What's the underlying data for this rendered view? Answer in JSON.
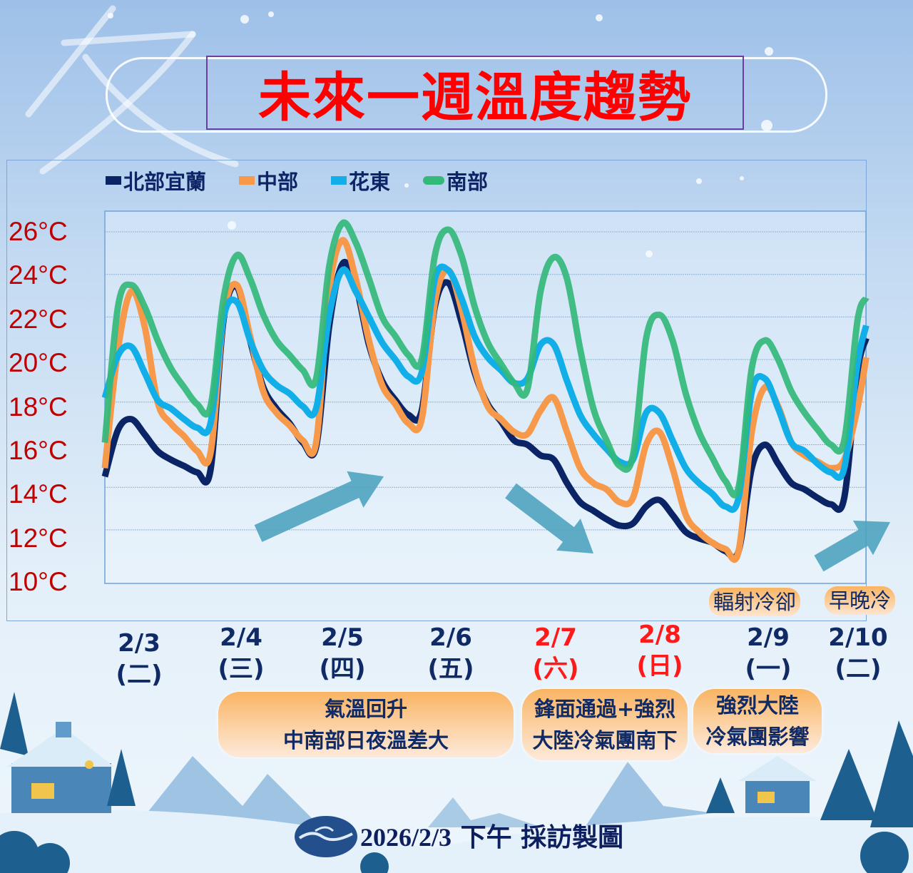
{
  "title": "未來一週溫度趨勢",
  "footer": {
    "date": "2026/2/3",
    "text": "下午 採訪製圖"
  },
  "colors": {
    "north": "#0b2466",
    "central": "#f7994a",
    "east": "#12aee8",
    "south": "#33b97a",
    "arrow": "#4fa3bf",
    "weekend": "#ff1a1a"
  },
  "dates": [
    {
      "date": "2/3",
      "weekday": "(二)",
      "weekend": false
    },
    {
      "date": "2/4",
      "weekday": "(三)",
      "weekend": false
    },
    {
      "date": "2/5",
      "weekday": "(四)",
      "weekend": false
    },
    {
      "date": "2/6",
      "weekday": "(五)",
      "weekend": false
    },
    {
      "date": "2/7",
      "weekday": "(六)",
      "weekend": true
    },
    {
      "date": "2/8",
      "weekday": "(日)",
      "weekend": true
    },
    {
      "date": "2/9",
      "weekday": "(一)",
      "weekend": false
    },
    {
      "date": "2/10",
      "weekday": "(二)",
      "weekend": false
    }
  ],
  "annotations": {
    "warming": [
      "氣溫回升",
      "中南部日夜溫差大"
    ],
    "front": [
      "鋒面通過+強烈",
      "大陸冷氣團南下"
    ],
    "cold_air": [
      "強烈大陸",
      "冷氣團影響"
    ],
    "radiative": "輻射冷卻",
    "morning_night": "早晚冷"
  },
  "chart_data": {
    "type": "line",
    "title": "未來一週溫度趨勢",
    "xlabel": "",
    "ylabel": "",
    "y_unit": "°C",
    "ylim": [
      10,
      26
    ],
    "yticks": [
      "26°C",
      "24°C",
      "22°C",
      "20°C",
      "18°C",
      "16°C",
      "14°C",
      "12°C",
      "10°C"
    ],
    "ytick_values": [
      26,
      24,
      22,
      20,
      18,
      16,
      14,
      12,
      10
    ],
    "grid": true,
    "legend": "top-left",
    "trend_arrows": [
      "up",
      "down",
      "up"
    ],
    "x": [
      "2/3 08:00",
      "2/3 11:00",
      "2/3 14:00",
      "2/3 17:00",
      "2/3 20:00",
      "2/3 23:00",
      "2/4 02:00",
      "2/4 05:00",
      "2/4 08:00",
      "2/4 11:00",
      "2/4 14:00",
      "2/4 17:00",
      "2/4 20:00",
      "2/4 23:00",
      "2/5 02:00",
      "2/5 05:00",
      "2/5 08:00",
      "2/5 11:00",
      "2/5 14:00",
      "2/5 17:00",
      "2/5 20:00",
      "2/5 23:00",
      "2/6 02:00",
      "2/6 05:00",
      "2/6 08:00",
      "2/6 11:00",
      "2/6 14:00",
      "2/6 17:00",
      "2/6 20:00",
      "2/6 23:00",
      "2/7 02:00",
      "2/7 05:00",
      "2/7 08:00",
      "2/7 11:00",
      "2/7 14:00",
      "2/7 17:00",
      "2/7 20:00",
      "2/7 23:00",
      "2/8 02:00",
      "2/8 05:00",
      "2/8 08:00",
      "2/8 11:00",
      "2/8 14:00",
      "2/8 17:00",
      "2/8 20:00",
      "2/8 23:00",
      "2/9 02:00",
      "2/9 05:00",
      "2/9 08:00",
      "2/9 11:00",
      "2/9 14:00",
      "2/9 17:00",
      "2/9 20:00",
      "2/9 23:00",
      "2/10 02:00",
      "2/10 05:00",
      "2/10 08:00",
      "2/10 11:00",
      "2/10 13:00"
    ],
    "series": [
      {
        "name": "北部宜蘭",
        "key": "north",
        "values": [
          14.5,
          16.7,
          17.2,
          16.5,
          15.7,
          15.3,
          15.0,
          14.7,
          14.8,
          21.9,
          23.4,
          20.9,
          18.7,
          17.7,
          17.0,
          16.1,
          15.9,
          21.6,
          24.5,
          23.5,
          20.7,
          19.0,
          18.1,
          17.4,
          17.6,
          22.5,
          23.6,
          21.8,
          19.4,
          17.9,
          17.1,
          16.2,
          16.0,
          15.5,
          15.3,
          14.2,
          13.3,
          12.9,
          12.5,
          12.2,
          12.3,
          13.1,
          13.4,
          12.7,
          11.9,
          11.6,
          11.4,
          11.0,
          11.0,
          14.9,
          16.0,
          15.1,
          14.2,
          13.9,
          13.5,
          13.2,
          13.5,
          19.4,
          21.0
        ]
      },
      {
        "name": "中部",
        "key": "central",
        "values": [
          14.9,
          20.5,
          23.2,
          21.6,
          18.0,
          17.0,
          16.4,
          15.7,
          15.6,
          22.1,
          23.5,
          21.1,
          18.5,
          17.5,
          16.9,
          16.2,
          16.1,
          23.3,
          25.6,
          23.8,
          20.9,
          18.8,
          17.9,
          17.0,
          17.2,
          22.7,
          24.2,
          22.4,
          19.6,
          17.8,
          17.2,
          16.6,
          16.5,
          17.6,
          18.2,
          16.6,
          14.9,
          14.2,
          13.9,
          13.3,
          13.5,
          16.0,
          16.6,
          14.9,
          12.7,
          11.9,
          11.4,
          11.1,
          11.0,
          16.6,
          18.7,
          17.8,
          16.1,
          15.5,
          15.2,
          14.9,
          15.3,
          17.7,
          20.1
        ]
      },
      {
        "name": "花東",
        "key": "east",
        "values": [
          18.2,
          20.2,
          20.6,
          19.4,
          18.1,
          17.7,
          17.2,
          16.8,
          17.0,
          22.0,
          22.7,
          20.9,
          19.5,
          18.8,
          18.4,
          17.8,
          17.7,
          22.1,
          24.2,
          23.2,
          22.0,
          20.8,
          20.0,
          19.2,
          19.4,
          23.8,
          24.2,
          22.9,
          21.1,
          20.1,
          19.5,
          18.9,
          19.1,
          20.7,
          20.7,
          19.0,
          17.4,
          16.5,
          15.8,
          15.2,
          15.3,
          17.5,
          17.5,
          16.2,
          14.9,
          14.2,
          13.7,
          13.1,
          13.5,
          18.5,
          19.1,
          17.7,
          16.1,
          15.7,
          15.1,
          14.7,
          14.9,
          19.8,
          21.6
        ]
      },
      {
        "name": "南部",
        "key": "south",
        "values": [
          16.1,
          22.5,
          23.5,
          22.5,
          20.9,
          19.6,
          18.7,
          17.9,
          17.8,
          22.9,
          24.9,
          23.8,
          22.1,
          20.9,
          20.2,
          19.5,
          19.1,
          24.4,
          26.4,
          25.5,
          23.8,
          22.0,
          21.1,
          20.2,
          20.0,
          24.9,
          26.1,
          24.9,
          22.5,
          20.8,
          19.8,
          18.9,
          18.6,
          23.2,
          24.8,
          23.8,
          20.5,
          17.7,
          16.2,
          15.0,
          15.5,
          21.0,
          22.1,
          20.9,
          18.4,
          16.6,
          15.4,
          14.3,
          14.0,
          19.6,
          20.9,
          20.0,
          18.5,
          17.5,
          16.7,
          16.0,
          16.2,
          21.8,
          22.9
        ]
      }
    ]
  }
}
